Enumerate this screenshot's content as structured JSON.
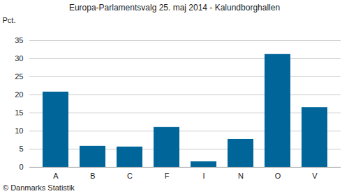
{
  "chart_data": {
    "type": "bar",
    "title": "Europa-Parlamentsvalg 25. maj 2014 - Kalundborghallen",
    "y_label": "Pct.",
    "caption": "© Danmarks Statistik",
    "categories": [
      "A",
      "B",
      "C",
      "F",
      "I",
      "N",
      "O",
      "V"
    ],
    "values": [
      20.8,
      5.8,
      5.6,
      11.0,
      1.5,
      7.7,
      31.2,
      16.5
    ],
    "color": "#00669a",
    "ylim": [
      0,
      35
    ],
    "yticks": [
      0,
      5,
      10,
      15,
      20,
      25,
      30,
      35
    ],
    "grid": true
  }
}
